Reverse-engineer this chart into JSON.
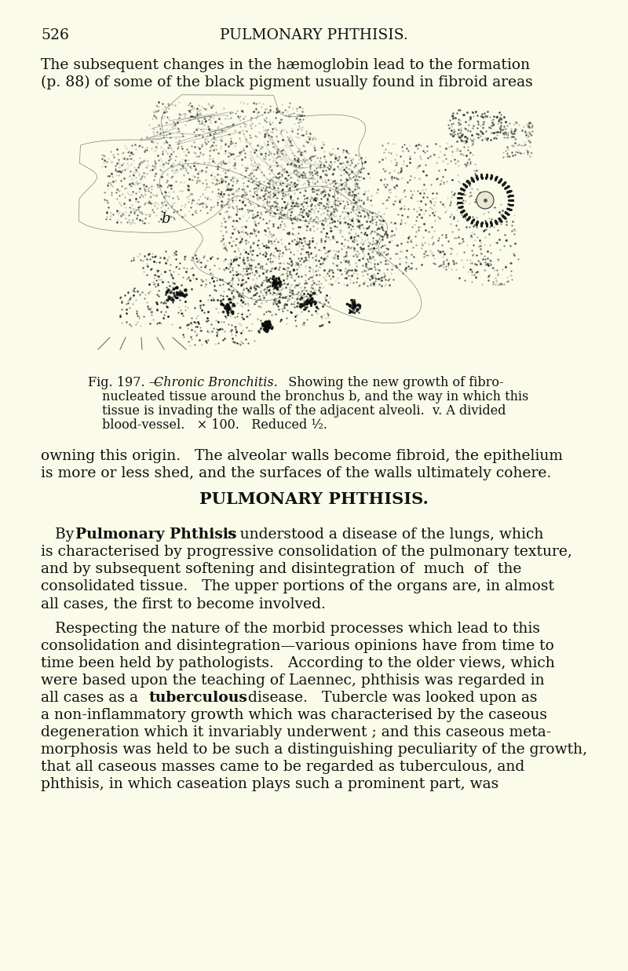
{
  "page_number": "526",
  "page_title": "PULMONARY PHTHISIS.",
  "background_color": "#FAFBE8",
  "text_color": "#111111",
  "header_line1": "The subsequent changes in the hæmoglobin lead to the formation",
  "header_line2": "(p. 88) of some of the black pigment usually found in fibroid areas",
  "fig_caption_line1": "Fig. 197.—Chronic Bronchitis.   Showing the new growth of fibro-",
  "fig_caption_line2": "nucleated tissue around the bronchus b, and the way in which this",
  "fig_caption_line3": "tissue is invading the walls of the adjacent alveoli.  v.  A divided",
  "fig_caption_line4": "blood-vessel.   × 100.   Reduced ½.",
  "body_p1_l1": "owning this origin.   The alveolar walls become fibroid, the epithelium",
  "body_p1_l2": "is more or less shed, and the surfaces of the walls ultimately cohere.",
  "section_heading": "PULMONARY PHTHISIS.",
  "p2_l1a": "By ",
  "p2_l1b": "Pulmonary Phthisis",
  "p2_l1c": " is understood a disease of the lungs, which",
  "p2_l2": "is characterised by progressive consolidation of the pulmonary texture,",
  "p2_l3": "and by subsequent softening and disintegration of  much  of  the",
  "p2_l4": "consolidated tissue.   The upper portions of the organs are, in almost",
  "p2_l5": "all cases, the first to become involved.",
  "p3_l1": "   Respecting the nature of the morbid processes which lead to this",
  "p3_l2": "consolidation and disintegration—various opinions have from time to",
  "p3_l3": "time been held by pathologists.   According to the older views, which",
  "p3_l4": "were based upon the teaching of Laennec, phthisis was regarded in",
  "p3_l5a": "all cases as a ",
  "p3_l5b": "tuberculous",
  "p3_l5c": " disease.   Tubercle was looked upon as",
  "p3_l6": "a non-inflammatory growth which was characterised by the caseous",
  "p3_l7": "degeneration which it invariably underwent ; and this caseous meta-",
  "p3_l8": "morphosis was held to be such a distinguishing peculiarity of the growth,",
  "p3_l9": "that all caseous masses came to be regarded as tuberculous, and",
  "p3_l10": "phthisis, in which caseation plays such a prominent part, was"
}
